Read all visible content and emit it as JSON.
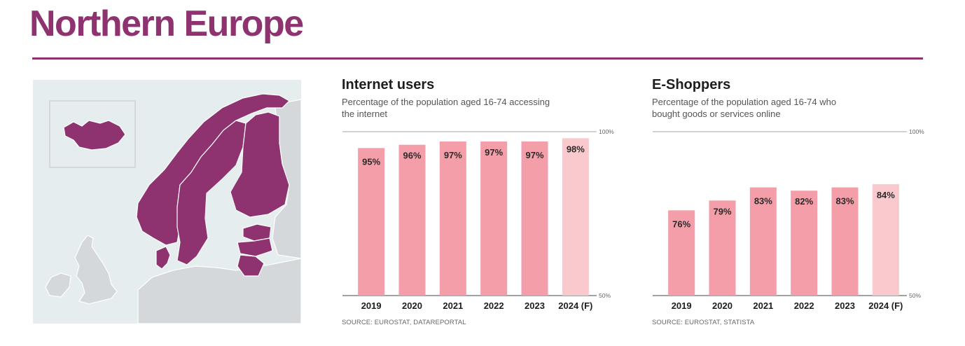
{
  "header": {
    "title": "Northern Europe"
  },
  "map": {
    "sea_color": "#e6edef",
    "land_color": "#d5d8db",
    "highlight_color": "#8e3370",
    "border_color": "#ffffff",
    "inset_border": "#c9cdd0"
  },
  "chart_data": [
    {
      "type": "bar",
      "title": "Internet users",
      "subtitle": "Percentage of the population aged 16-74 accessing the internet",
      "categories": [
        "2019",
        "2020",
        "2021",
        "2022",
        "2023",
        "2024 (F)"
      ],
      "values": [
        95,
        96,
        97,
        97,
        97,
        98
      ],
      "value_labels": [
        "95%",
        "96%",
        "97%",
        "97%",
        "97%",
        "98%"
      ],
      "ylim": [
        50,
        100
      ],
      "y_ticks": [
        "100%",
        "50%"
      ],
      "bar_color": "#f39ea8",
      "forecast_color": "#f9c9ce",
      "source": "SOURCE: EUROSTAT, DATAREPORTAL"
    },
    {
      "type": "bar",
      "title": "E-Shoppers",
      "subtitle": "Percentage of the population aged 16-74 who bought goods or services online",
      "categories": [
        "2019",
        "2020",
        "2021",
        "2022",
        "2023",
        "2024 (F)"
      ],
      "values": [
        76,
        79,
        83,
        82,
        83,
        84
      ],
      "value_labels": [
        "76%",
        "79%",
        "83%",
        "82%",
        "83%",
        "84%"
      ],
      "ylim": [
        50,
        100
      ],
      "y_ticks": [
        "100%",
        "50%"
      ],
      "bar_color": "#f39ea8",
      "forecast_color": "#f9c9ce",
      "source": "SOURCE: EUROSTAT, STATISTA"
    }
  ]
}
